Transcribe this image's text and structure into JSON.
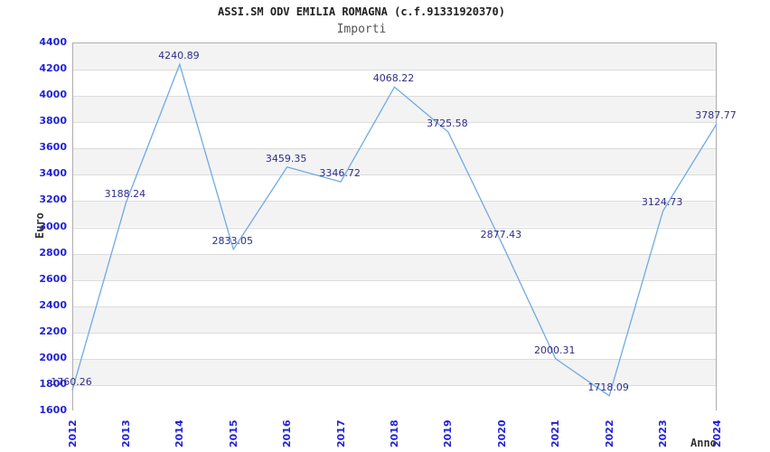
{
  "chart_data": {
    "type": "line",
    "title": "ASSI.SM ODV EMILIA ROMAGNA (c.f.91331920370)",
    "subtitle": "Importi",
    "xlabel": "Anno",
    "ylabel": "Euro",
    "categories": [
      "2012",
      "2013",
      "2014",
      "2015",
      "2016",
      "2017",
      "2018",
      "2019",
      "2020",
      "2021",
      "2022",
      "2023",
      "2024"
    ],
    "values": [
      1760.26,
      3188.24,
      4240.89,
      2833.05,
      3459.35,
      3346.72,
      4068.22,
      3725.58,
      2877.43,
      2000.31,
      1718.09,
      3124.73,
      3787.77
    ],
    "point_labels": [
      "1760.26",
      "3188.24",
      "4240.89",
      "2833.05",
      "3459.35",
      "3346.72",
      "4068.22",
      "3725.58",
      "2877.43",
      "2000.31",
      "1718.09",
      "3124.73",
      "3787.77"
    ],
    "y_ticks": [
      4400,
      4200,
      4000,
      3800,
      3600,
      3400,
      3200,
      3000,
      2800,
      2600,
      2400,
      2200,
      2000,
      1800,
      1600
    ],
    "ylim": [
      1600,
      4400
    ],
    "y_tick_step": 200,
    "grid": "horizontal-bands",
    "legend": "none",
    "colors": {
      "line": "#70aae4",
      "band_gray": "#f3f3f3",
      "band_white": "#ffffff",
      "gridline": "#dcdcdc",
      "plot_border": "#adadad",
      "tick_label": "#2222d6",
      "data_label": "#2e2e87",
      "title": "#222222",
      "subtitle": "#555555",
      "axis_title": "#333333"
    }
  }
}
